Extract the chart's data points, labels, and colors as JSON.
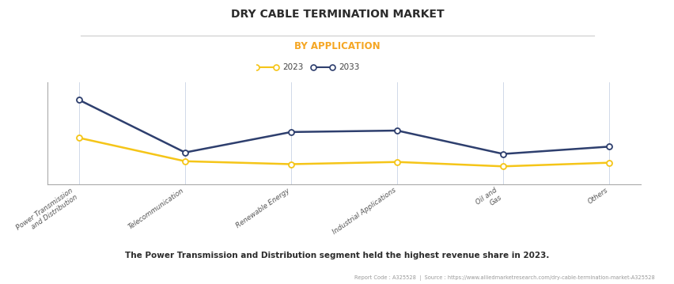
{
  "title": "DRY CABLE TERMINATION MARKET",
  "subtitle": "BY APPLICATION",
  "categories": [
    "Power Transmission\nand Distribution",
    "Telecommunication",
    "Renewable Energy",
    "Industrial Applications",
    "Oil and\nGas",
    "Others"
  ],
  "series_2023": [
    3.2,
    1.6,
    1.4,
    1.55,
    1.25,
    1.5
  ],
  "series_2033": [
    5.8,
    2.2,
    3.6,
    3.7,
    2.1,
    2.6
  ],
  "color_2023": "#f5c518",
  "color_2033": "#2e3f6e",
  "legend_2023": "2023",
  "legend_2033": "2033",
  "footnote": "The Power Transmission and Distribution segment held the highest revenue share in 2023.",
  "source_text": "Report Code : A325528  |  Source : https://www.alliedmarketresearch.com/dry-cable-termination-market-A325528",
  "title_fontsize": 10,
  "subtitle_fontsize": 8.5,
  "subtitle_color": "#f5a623",
  "background_color": "#ffffff",
  "grid_color": "#d0d8e8",
  "ylim": [
    0,
    7
  ]
}
